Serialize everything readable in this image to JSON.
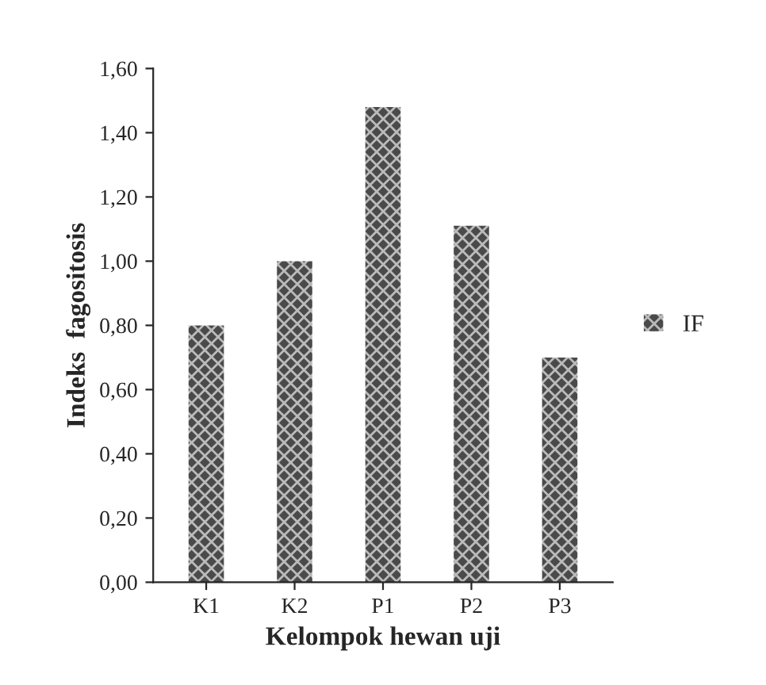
{
  "chart_data": {
    "type": "bar",
    "xlabel": "Kelompok hewan uji",
    "ylabel": "Indeks  fagositosis",
    "categories": [
      "K1",
      "K2",
      "P1",
      "P2",
      "P3"
    ],
    "series": [
      {
        "name": "IF",
        "color": "#4a4a4a",
        "values": [
          0.8,
          1.0,
          1.48,
          1.11,
          0.7
        ]
      }
    ],
    "ylim": [
      0,
      1.6
    ],
    "yticks": [
      {
        "value": 0,
        "label": "0,00"
      },
      {
        "value": 0.2,
        "label": "0,20"
      },
      {
        "value": 0.4,
        "label": "0,40"
      },
      {
        "value": 0.6,
        "label": "0,60"
      },
      {
        "value": 0.8,
        "label": "0,80"
      },
      {
        "value": 1.0,
        "label": "1,00"
      },
      {
        "value": 1.2,
        "label": "1,20"
      },
      {
        "value": 1.4,
        "label": "1,40"
      },
      {
        "value": 1.6,
        "label": "1,60"
      }
    ],
    "grid": false,
    "legend": "right"
  }
}
